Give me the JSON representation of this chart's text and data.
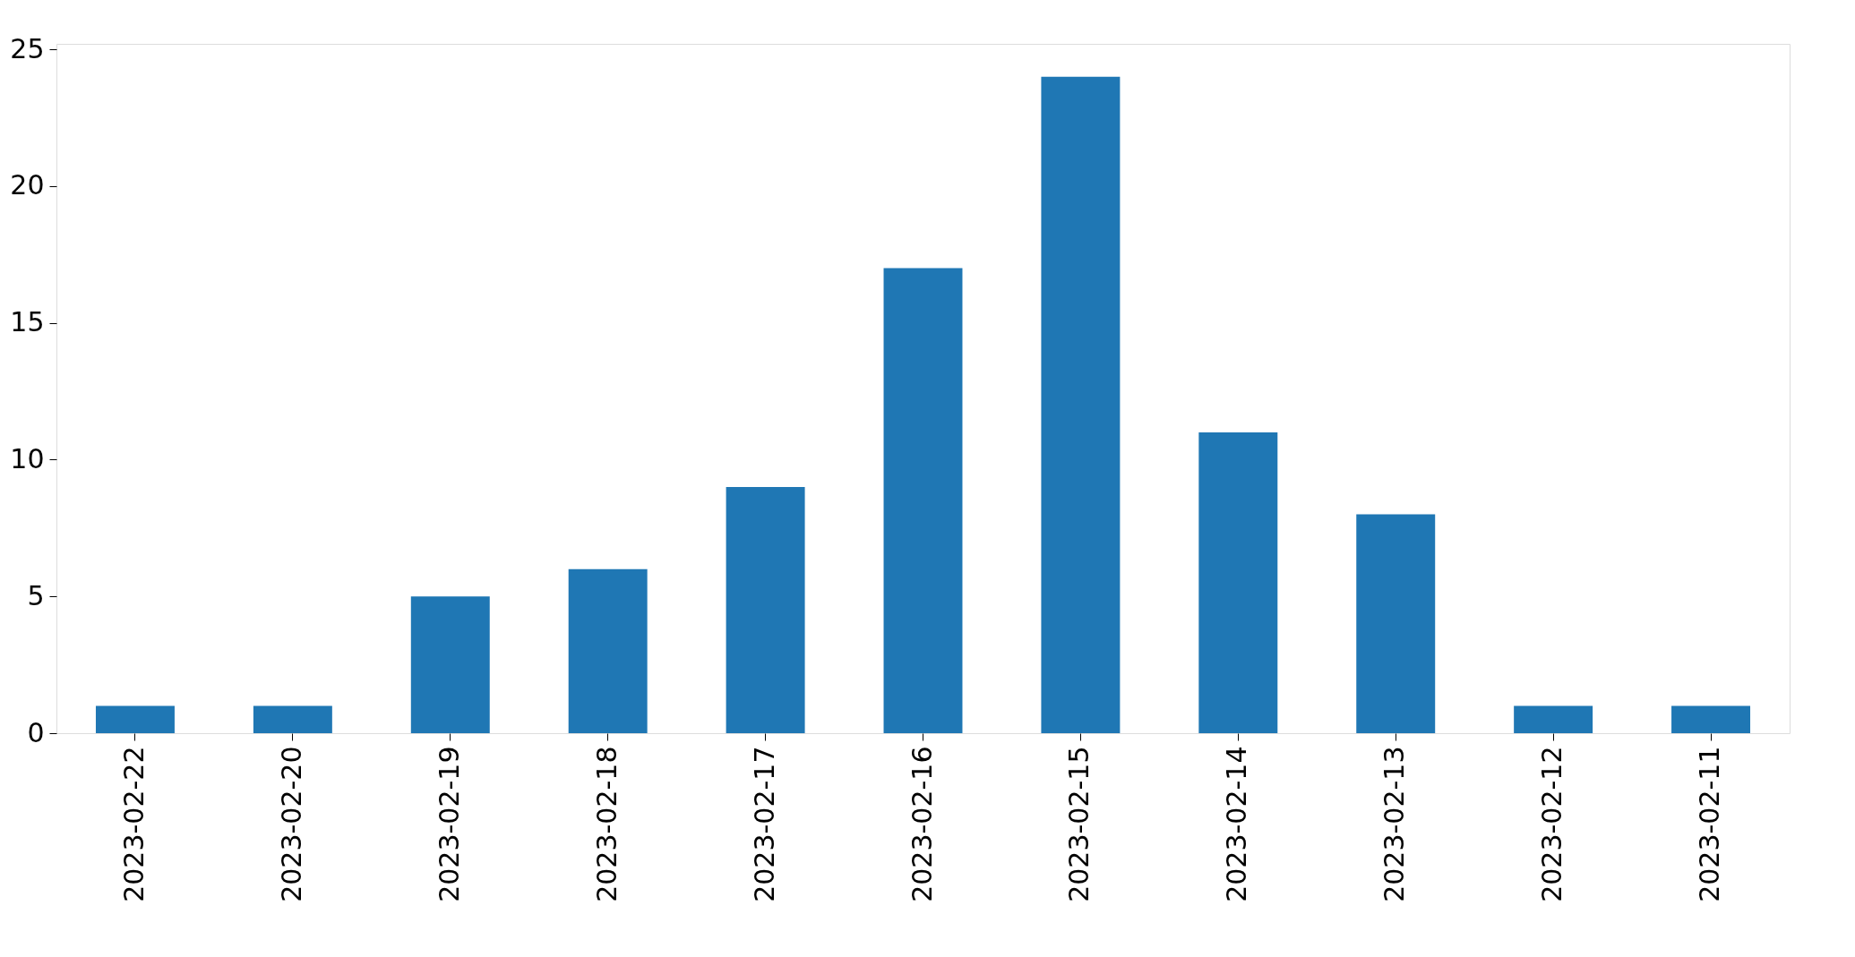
{
  "chart_data": {
    "type": "bar",
    "categories": [
      "2023-02-22",
      "2023-02-20",
      "2023-02-19",
      "2023-02-18",
      "2023-02-17",
      "2023-02-16",
      "2023-02-15",
      "2023-02-14",
      "2023-02-13",
      "2023-02-12",
      "2023-02-11"
    ],
    "values": [
      1,
      1,
      5,
      6,
      9,
      17,
      24,
      11,
      8,
      1,
      1
    ],
    "color": "#1f77b4",
    "ylim": [
      0,
      25.2
    ],
    "yticks": [
      0,
      5,
      10,
      15,
      20,
      25
    ],
    "grid": false
  }
}
